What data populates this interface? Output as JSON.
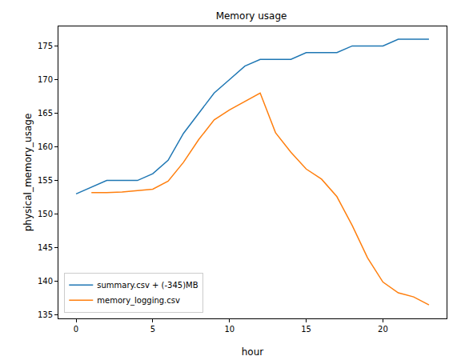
{
  "chart_data": {
    "type": "line",
    "title": "Memory usage",
    "x_label": "hour",
    "y_label": "physical_memory_usage",
    "series": [
      {
        "name": "summary.csv + (-345)MB",
        "color": "#1f77b4",
        "x": [
          0,
          1,
          2,
          3,
          4,
          5,
          6,
          7,
          8,
          9,
          10,
          11,
          12,
          13,
          14,
          15,
          16,
          17,
          18,
          19,
          20,
          21,
          22,
          23
        ],
        "values": [
          153,
          154,
          155,
          155,
          155,
          156,
          158,
          162,
          165,
          168,
          170,
          172,
          173,
          173,
          173,
          174,
          174,
          174,
          175,
          175,
          175,
          176,
          176,
          176
        ]
      },
      {
        "name": "memory_logging.csv",
        "color": "#ff7f0e",
        "x": [
          1,
          2,
          3,
          4,
          5,
          6,
          7,
          8,
          9,
          10,
          11,
          12,
          13,
          14,
          15,
          16,
          17,
          18,
          19,
          20,
          21,
          22,
          23
        ],
        "values": [
          153.2,
          153.2,
          153.3,
          153.5,
          153.7,
          154.9,
          157.7,
          161.1,
          164.0,
          165.5,
          166.8,
          168.0,
          162.1,
          159.2,
          156.7,
          155.2,
          152.6,
          148.3,
          143.5,
          139.9,
          138.3,
          137.7,
          136.5
        ]
      }
    ],
    "xlim": [
      -1.15,
      24.15
    ],
    "xticks": [
      0,
      5,
      10,
      15,
      20
    ],
    "ylim": [
      134.5,
      177.9
    ],
    "yticks": [
      135,
      140,
      145,
      150,
      155,
      160,
      165,
      170,
      175
    ],
    "grid": false,
    "legend": "lower left"
  }
}
